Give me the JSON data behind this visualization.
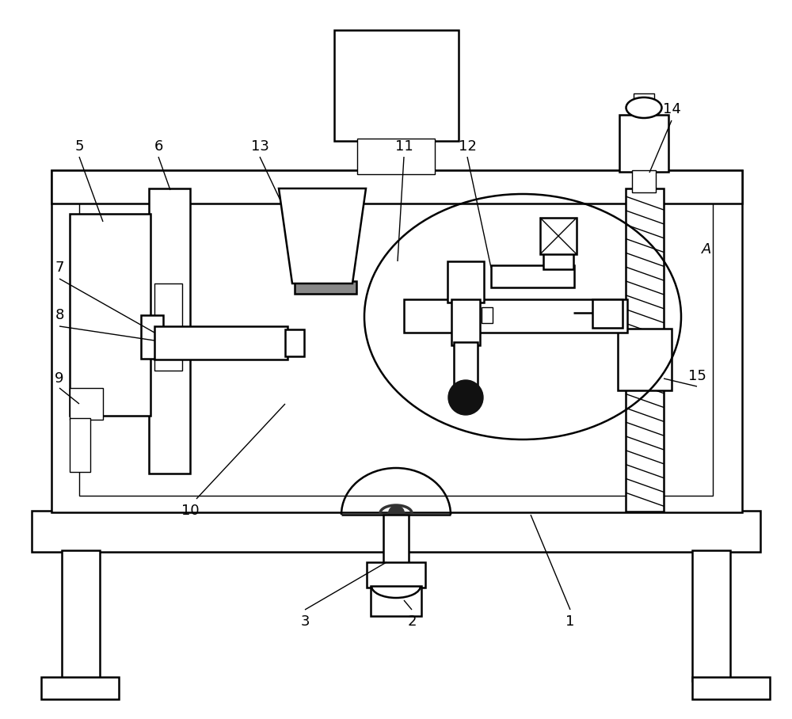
{
  "bg_color": "#ffffff",
  "lc": "#000000",
  "lw": 1.8,
  "tlw": 1.0,
  "fs": 13,
  "fig_w": 10.0,
  "fig_h": 9.08,
  "dpi": 100
}
